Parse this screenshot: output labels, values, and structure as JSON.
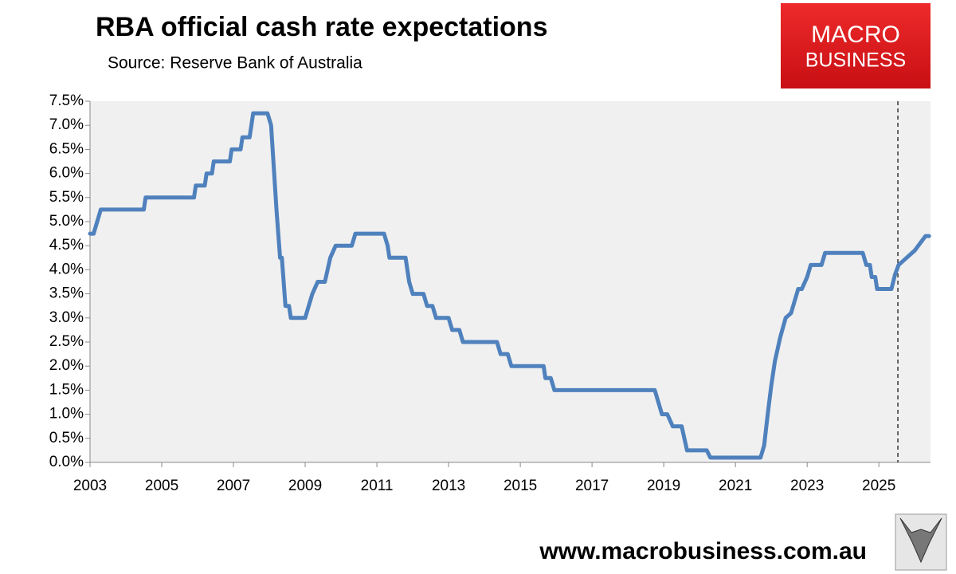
{
  "chart_data": {
    "type": "line",
    "title": "RBA official cash rate expectations",
    "subtitle": "Source: Reserve Bank of Australia",
    "logo_text": [
      "MACRO",
      "BUSINESS"
    ],
    "footer": "www.macrobusiness.com.au",
    "color": "#4f81bd",
    "grid": false,
    "forecast_start": 2025.53,
    "xlim": [
      2003,
      2026.44
    ],
    "xticks": [
      2003,
      2005,
      2007,
      2009,
      2011,
      2013,
      2015,
      2017,
      2019,
      2021,
      2023,
      2025
    ],
    "ylim": [
      0,
      7.5
    ],
    "yticks": [
      {
        "value": 0,
        "label": "0.0%"
      },
      {
        "value": 0.5,
        "label": "0.5%"
      },
      {
        "value": 1,
        "label": "1.0%"
      },
      {
        "value": 1.5,
        "label": "1.5%"
      },
      {
        "value": 2,
        "label": "2.0%"
      },
      {
        "value": 2.5,
        "label": "2.5%"
      },
      {
        "value": 3,
        "label": "3.0%"
      },
      {
        "value": 3.5,
        "label": "3.5%"
      },
      {
        "value": 4,
        "label": "4.0%"
      },
      {
        "value": 4.5,
        "label": "4.5%"
      },
      {
        "value": 5,
        "label": "5.0%"
      },
      {
        "value": 5.5,
        "label": "5.5%"
      },
      {
        "value": 6,
        "label": "6.0%"
      },
      {
        "value": 6.5,
        "label": "6.5%"
      },
      {
        "value": 7,
        "label": "7.0%"
      },
      {
        "value": 7.5,
        "label": "7.5%"
      }
    ],
    "x": [
      2003.0,
      2003.1,
      2003.2,
      2003.3,
      2004.5,
      2004.55,
      2005.9,
      2005.95,
      2006.2,
      2006.25,
      2006.4,
      2006.45,
      2006.9,
      2006.95,
      2007.2,
      2007.25,
      2007.45,
      2007.5,
      2007.55,
      2007.95,
      2008.05,
      2008.2,
      2008.3,
      2008.35,
      2008.45,
      2008.55,
      2008.6,
      2009.0,
      2009.2,
      2009.35,
      2009.55,
      2009.7,
      2009.85,
      2010.3,
      2010.4,
      2011.2,
      2011.3,
      2011.35,
      2011.8,
      2011.9,
      2012.0,
      2012.3,
      2012.4,
      2012.55,
      2012.65,
      2013.0,
      2013.1,
      2013.3,
      2013.4,
      2014.35,
      2014.45,
      2014.65,
      2014.75,
      2015.65,
      2015.7,
      2015.85,
      2015.95,
      2018.75,
      2018.85,
      2018.95,
      2019.1,
      2019.25,
      2019.5,
      2019.65,
      2020.2,
      2020.3,
      2021.7,
      2021.8,
      2021.9,
      2022.0,
      2022.1,
      2022.25,
      2022.4,
      2022.55,
      2022.65,
      2022.75,
      2022.85,
      2023.0,
      2023.1,
      2023.4,
      2023.5,
      2024.55,
      2024.65,
      2024.75,
      2024.8,
      2024.9,
      2024.95,
      2025.35,
      2025.45,
      2025.55,
      2025.7,
      2025.85,
      2026.0,
      2026.15,
      2026.3,
      2026.4
    ],
    "values": [
      4.75,
      4.75,
      5.0,
      5.25,
      5.25,
      5.5,
      5.5,
      5.75,
      5.75,
      6.0,
      6.0,
      6.25,
      6.25,
      6.5,
      6.5,
      6.75,
      6.75,
      7.0,
      7.25,
      7.25,
      7.0,
      5.25,
      4.25,
      4.25,
      3.25,
      3.25,
      3.0,
      3.0,
      3.5,
      3.75,
      3.75,
      4.25,
      4.5,
      4.5,
      4.75,
      4.75,
      4.5,
      4.25,
      4.25,
      3.75,
      3.5,
      3.5,
      3.25,
      3.25,
      3.0,
      3.0,
      2.75,
      2.75,
      2.5,
      2.5,
      2.25,
      2.25,
      2.0,
      2.0,
      1.75,
      1.75,
      1.5,
      1.5,
      1.25,
      1.0,
      1.0,
      0.75,
      0.75,
      0.25,
      0.25,
      0.1,
      0.1,
      0.35,
      1.0,
      1.6,
      2.1,
      2.6,
      3.0,
      3.1,
      3.35,
      3.6,
      3.6,
      3.85,
      4.1,
      4.1,
      4.35,
      4.35,
      4.1,
      4.1,
      3.85,
      3.85,
      3.6,
      3.6,
      3.9,
      4.1,
      4.2,
      4.3,
      4.4,
      4.55,
      4.7,
      4.7
    ]
  }
}
